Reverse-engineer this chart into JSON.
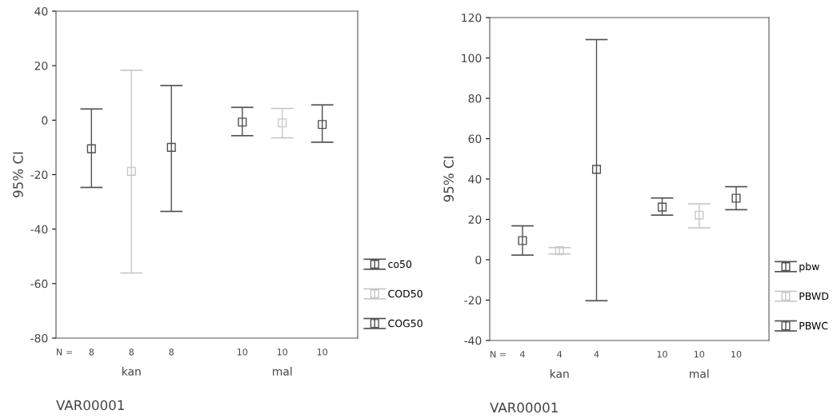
{
  "chart_data": [
    {
      "type": "scatter",
      "categories": [
        "kan",
        "mal"
      ],
      "ylabel": "95% CI",
      "xlabel": "VAR00001",
      "ylim": [
        -80,
        40
      ],
      "yticks": [
        -80,
        -60,
        -40,
        -20,
        0,
        20,
        40
      ],
      "marker": "square",
      "legend": "right",
      "grid": false,
      "annotations": [
        "N =",
        "8",
        "8",
        "8",
        "10",
        "10",
        "10"
      ],
      "series": [
        {
          "name": "co50",
          "color": "#505050",
          "values": [
            -10.5,
            -0.7
          ],
          "errors": [
            [
              -24.7,
              4.1
            ],
            [
              -5.7,
              4.7
            ]
          ]
        },
        {
          "name": "COD50",
          "color": "#c8c8c8",
          "values": [
            -18.8,
            -1.0
          ],
          "errors": [
            [
              -56.1,
              18.3
            ],
            [
              -6.5,
              4.3
            ]
          ]
        },
        {
          "name": "COG50",
          "color": "#505050",
          "values": [
            -10.0,
            -1.6
          ],
          "errors": [
            [
              -33.5,
              12.7
            ],
            [
              -8.1,
              5.6
            ]
          ]
        }
      ]
    },
    {
      "type": "scatter",
      "categories": [
        "kan",
        "mal"
      ],
      "ylabel": "95% CI",
      "xlabel": "VAR00001",
      "ylim": [
        -40,
        120
      ],
      "yticks": [
        -40,
        -20,
        0,
        20,
        40,
        60,
        80,
        100,
        120
      ],
      "marker": "square",
      "legend": "right",
      "grid": false,
      "annotations": [
        "N =",
        "4",
        "4",
        "4",
        "10",
        "10",
        "10"
      ],
      "series": [
        {
          "name": "pbw",
          "color": "#505050",
          "values": [
            9.5,
            26.1
          ],
          "errors": [
            [
              2.3,
              16.8
            ],
            [
              22.1,
              30.6
            ]
          ]
        },
        {
          "name": "PBWD",
          "color": "#c8c8c8",
          "values": [
            4.5,
            22.1
          ],
          "errors": [
            [
              2.9,
              6.0
            ],
            [
              15.8,
              27.7
            ]
          ]
        },
        {
          "name": "PBWC",
          "color": "#505050",
          "values": [
            44.8,
            30.5
          ],
          "errors": [
            [
              -20.3,
              109.1
            ],
            [
              24.8,
              36.2
            ]
          ]
        }
      ]
    }
  ]
}
